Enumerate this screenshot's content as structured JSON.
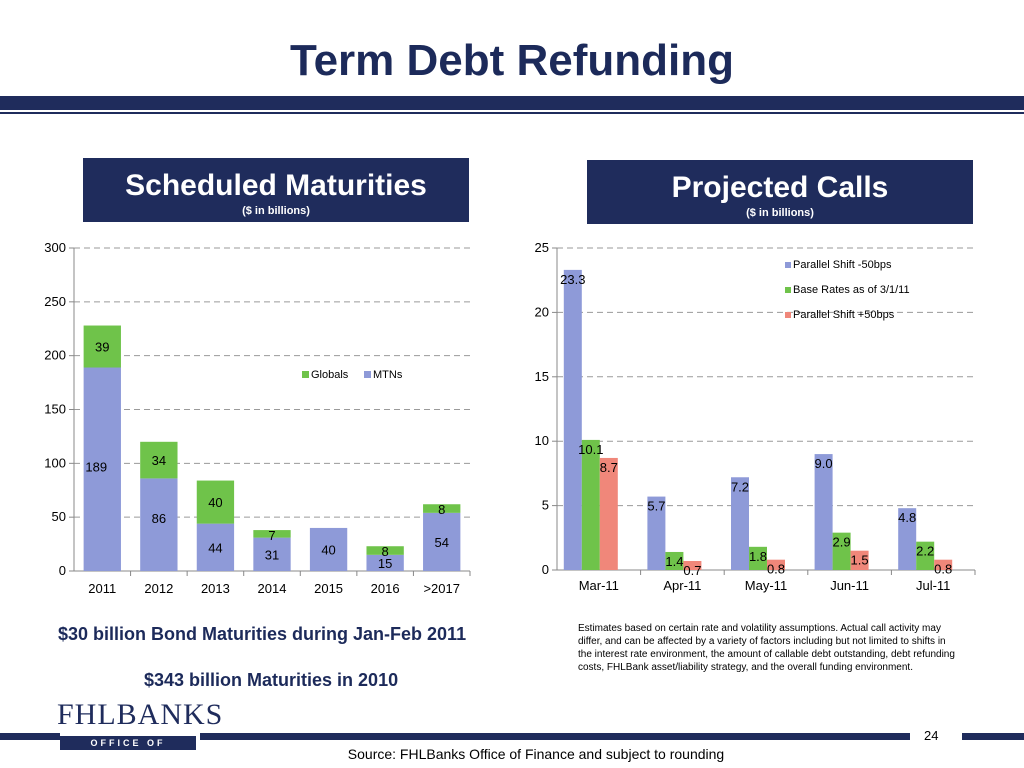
{
  "title": "Term Debt Refunding",
  "left_box": {
    "heading": "Scheduled Maturities",
    "sub": "($ in billions)"
  },
  "right_box": {
    "heading": "Projected Calls",
    "sub": "($ in billions)"
  },
  "notes": {
    "bond": "$30 billion Bond Maturities during Jan-Feb 2011",
    "maturities": "$343 billion Maturities in 2010"
  },
  "disclaimer": "Estimates based on certain rate and volatility assumptions.  Actual call activity may differ, and can be affected by a variety of factors including but not limited to shifts in the interest rate environment, the amount of callable debt outstanding, debt refunding costs, FHLBank asset/liability strategy, and the overall funding environment.",
  "page_number": "24",
  "source": "Source: FHLBanks Office of Finance and subject to rounding",
  "logo": {
    "name": "FHLBANKS",
    "sub": "OFFICE OF FINANCE"
  },
  "colors": {
    "navy": "#1f2c5c",
    "blue": "#8e9ad8",
    "green": "#6fc34a",
    "salmon": "#f0877a"
  },
  "chart_data": [
    {
      "type": "bar",
      "stacked": true,
      "categories": [
        "2011",
        "2012",
        "2013",
        "2014",
        "2015",
        "2016",
        ">2017"
      ],
      "series": [
        {
          "name": "MTNs",
          "values": [
            189,
            86,
            44,
            31,
            40,
            15,
            54
          ],
          "labels": [
            "189",
            "86",
            "44",
            "31",
            "40",
            "15",
            "54"
          ]
        },
        {
          "name": "Globals",
          "values": [
            39,
            34,
            40,
            7,
            0,
            8,
            8
          ],
          "labels": [
            "39",
            "34",
            "40",
            "7",
            "",
            "8",
            "8"
          ]
        }
      ],
      "yticks": [
        "0",
        "50",
        "100",
        "150",
        "200",
        "250",
        "300"
      ],
      "ylim": [
        0,
        300
      ],
      "legend": [
        "Globals",
        "MTNs"
      ],
      "legend_position": "top-right",
      "grid": true
    },
    {
      "type": "bar",
      "categories": [
        "Mar-11",
        "Apr-11",
        "May-11",
        "Jun-11",
        "Jul-11"
      ],
      "series": [
        {
          "name": "Parallel Shift -50bps",
          "values": [
            23.3,
            5.7,
            7.2,
            9.0,
            4.8
          ],
          "labels": [
            "23.3",
            "5.7",
            "7.2",
            "9.0",
            "4.8"
          ]
        },
        {
          "name": "Base Rates as of 3/1/11",
          "values": [
            10.1,
            1.4,
            1.8,
            2.9,
            2.2
          ],
          "labels": [
            "10.1",
            "1.4",
            "1.8",
            "2.9",
            "2.2"
          ]
        },
        {
          "name": "Parallel Shift +50bps",
          "values": [
            8.7,
            0.7,
            0.8,
            1.5,
            0.8
          ],
          "labels": [
            "8.7",
            "0.7",
            "0.8",
            "1.5",
            "0.8"
          ]
        }
      ],
      "yticks": [
        "0",
        "5",
        "10",
        "15",
        "20",
        "25"
      ],
      "ylim": [
        0,
        25
      ],
      "legend_position": "top-right",
      "grid": true
    }
  ]
}
